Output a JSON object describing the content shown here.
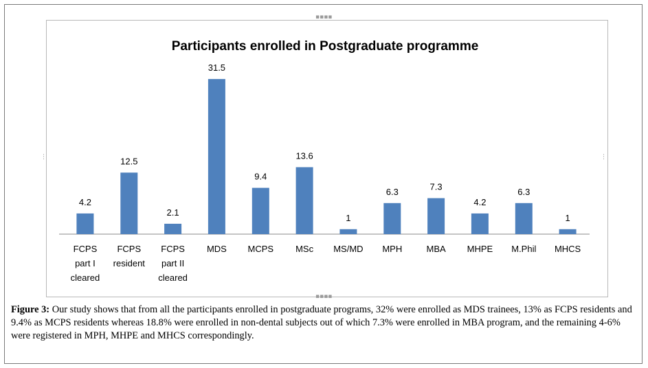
{
  "figure": {
    "caption_label": "Figure 3:",
    "caption_text": " Our study shows that from all the participants enrolled in postgraduate programs, 32% were enrolled as MDS trainees, 13% as FCPS residents and 9.4% as MCPS residents whereas 18.8% were enrolled in non-dental subjects out of which 7.3% were enrolled in MBA program, and the remaining 4-6% were registered in MPH, MHPE and MHCS correspondingly."
  },
  "chart_data": {
    "type": "bar",
    "title": "Participants enrolled in Postgraduate programme",
    "xlabel": "",
    "ylabel": "",
    "ylim": [
      0,
      35
    ],
    "grid": false,
    "bar_color": "#4f81bd",
    "categories": [
      [
        "FCPS",
        "part I",
        "cleared"
      ],
      [
        "FCPS",
        "resident"
      ],
      [
        "FCPS",
        "part II",
        "cleared"
      ],
      [
        "MDS"
      ],
      [
        "MCPS"
      ],
      [
        "MSc"
      ],
      [
        "MS/MD"
      ],
      [
        "MPH"
      ],
      [
        "MBA"
      ],
      [
        "MHPE"
      ],
      [
        "M.Phil"
      ],
      [
        "MHCS"
      ]
    ],
    "values": [
      4.2,
      12.5,
      2.1,
      31.5,
      9.4,
      13.6,
      1,
      6.3,
      7.3,
      4.2,
      6.3,
      1
    ]
  }
}
